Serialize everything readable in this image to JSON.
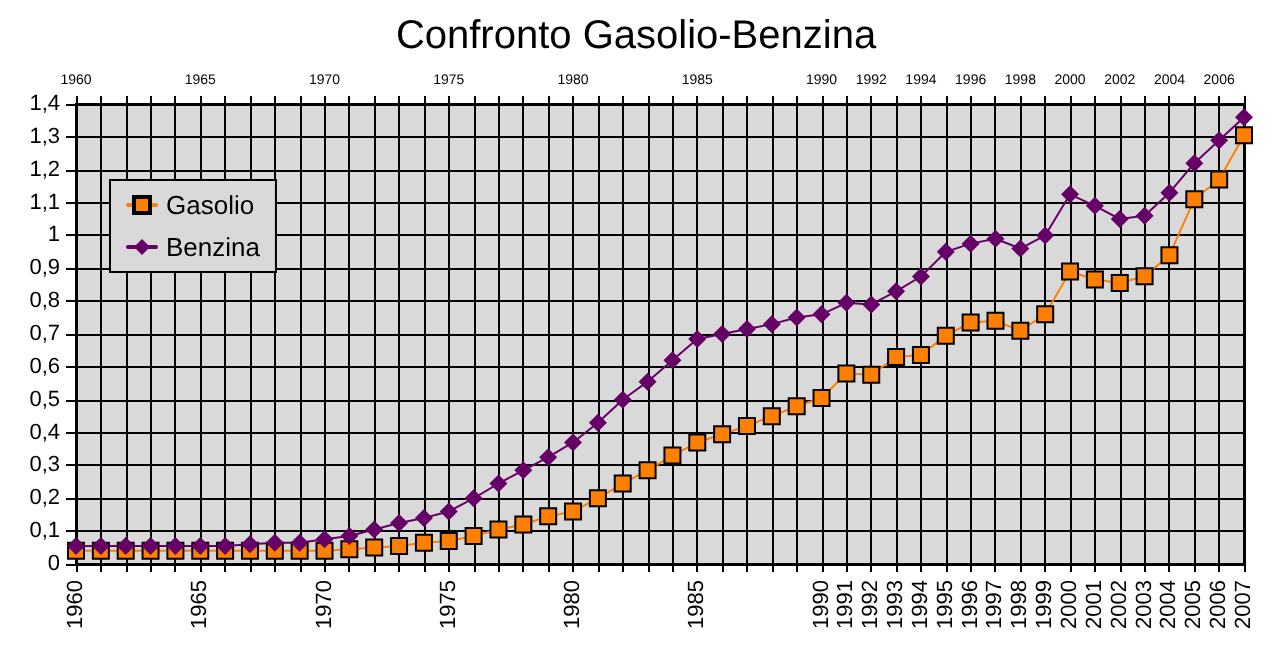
{
  "chart_data": {
    "type": "line",
    "title": "Confronto Gasolio-Benzina",
    "categories": [
      "1960",
      null,
      null,
      null,
      null,
      "1965",
      null,
      null,
      null,
      null,
      "1970",
      null,
      null,
      null,
      null,
      "1975",
      null,
      null,
      null,
      null,
      "1980",
      null,
      null,
      null,
      null,
      "1985",
      null,
      null,
      null,
      null,
      "1990",
      "1991",
      "1992",
      "1993",
      "1994",
      "1995",
      "1996",
      "1997",
      "1998",
      "1999",
      "2000",
      "2001",
      "2002",
      "2003",
      "2004",
      "2005",
      "2006",
      "2007"
    ],
    "series": [
      {
        "name": "Gasolio",
        "color": "#ff8000",
        "marker": "square",
        "values": [
          0.04,
          0.04,
          0.04,
          0.04,
          0.04,
          0.04,
          0.04,
          0.04,
          0.04,
          0.04,
          0.04,
          0.045,
          0.05,
          0.055,
          0.065,
          0.07,
          0.085,
          0.105,
          0.12,
          0.145,
          0.16,
          0.2,
          0.245,
          0.285,
          0.33,
          0.37,
          0.395,
          0.42,
          0.45,
          0.48,
          0.505,
          0.58,
          0.576,
          0.63,
          0.636,
          0.695,
          0.735,
          0.74,
          0.71,
          0.76,
          0.89,
          0.866,
          0.855,
          0.876,
          0.94,
          1.11,
          1.17,
          1.305
        ]
      },
      {
        "name": "Benzina",
        "color": "#660066",
        "marker": "diamond",
        "values": [
          0.055,
          0.055,
          0.055,
          0.055,
          0.055,
          0.055,
          0.055,
          0.06,
          0.065,
          0.065,
          0.075,
          0.085,
          0.105,
          0.125,
          0.14,
          0.16,
          0.2,
          0.245,
          0.285,
          0.325,
          0.37,
          0.43,
          0.5,
          0.555,
          0.62,
          0.685,
          0.7,
          0.715,
          0.73,
          0.75,
          0.76,
          0.795,
          0.79,
          0.83,
          0.875,
          0.95,
          0.975,
          0.99,
          0.96,
          1.0,
          1.125,
          1.09,
          1.05,
          1.06,
          1.13,
          1.22,
          1.29,
          1.36
        ]
      }
    ],
    "ylim": [
      0,
      1.4
    ],
    "yticks": [
      {
        "value": 0,
        "label": "0"
      },
      {
        "value": 0.1,
        "label": "0,1"
      },
      {
        "value": 0.2,
        "label": "0,2"
      },
      {
        "value": 0.3,
        "label": "0,3"
      },
      {
        "value": 0.4,
        "label": "0,4"
      },
      {
        "value": 0.5,
        "label": "0,5"
      },
      {
        "value": 0.6,
        "label": "0,6"
      },
      {
        "value": 0.7,
        "label": "0,7"
      },
      {
        "value": 0.8,
        "label": "0,8"
      },
      {
        "value": 0.9,
        "label": "0,9"
      },
      {
        "value": 1,
        "label": "1"
      },
      {
        "value": 1.1,
        "label": "1,1"
      },
      {
        "value": 1.2,
        "label": "1,2"
      },
      {
        "value": 1.3,
        "label": "1,3"
      },
      {
        "value": 1.4,
        "label": "1,4"
      }
    ],
    "x2lim": [
      1960,
      2007
    ],
    "x2ticks": [
      1960,
      {
        "value": 1961,
        "label": null
      },
      {
        "value": 1962,
        "label": null
      },
      {
        "value": 1963,
        "label": null
      },
      {
        "value": 1964,
        "label": null
      },
      1965,
      {
        "value": 1966,
        "label": null
      },
      {
        "value": 1967,
        "label": null
      },
      {
        "value": 1968,
        "label": null
      },
      {
        "value": 1969,
        "label": null
      },
      1970,
      {
        "value": 1971,
        "label": null
      },
      {
        "value": 1972,
        "label": null
      },
      {
        "value": 1973,
        "label": null
      },
      {
        "value": 1974,
        "label": null
      },
      1975,
      {
        "value": 1976,
        "label": null
      },
      {
        "value": 1977,
        "label": null
      },
      {
        "value": 1978,
        "label": null
      },
      {
        "value": 1979,
        "label": null
      },
      1980,
      {
        "value": 1981,
        "label": null
      },
      {
        "value": 1982,
        "label": null
      },
      {
        "value": 1983,
        "label": null
      },
      {
        "value": 1984,
        "label": null
      },
      1985,
      {
        "value": 1986,
        "label": null
      },
      {
        "value": 1987,
        "label": null
      },
      {
        "value": 1988,
        "label": null
      },
      {
        "value": 1989,
        "label": null
      },
      1990,
      {
        "value": 1991,
        "label": null
      },
      1992,
      {
        "value": 1993,
        "label": null
      },
      1994,
      {
        "value": 1995,
        "label": null
      },
      1996,
      {
        "value": 1997,
        "label": null
      },
      1998,
      {
        "value": 1999,
        "label": null
      },
      2000,
      {
        "value": 2001,
        "label": null
      },
      2002,
      {
        "value": 2003,
        "label": null
      },
      2004,
      {
        "value": 2005,
        "label": null
      },
      2006,
      {
        "value": 2007,
        "label": null
      }
    ],
    "grid": true,
    "legend": "top left",
    "line_style": "solid"
  }
}
